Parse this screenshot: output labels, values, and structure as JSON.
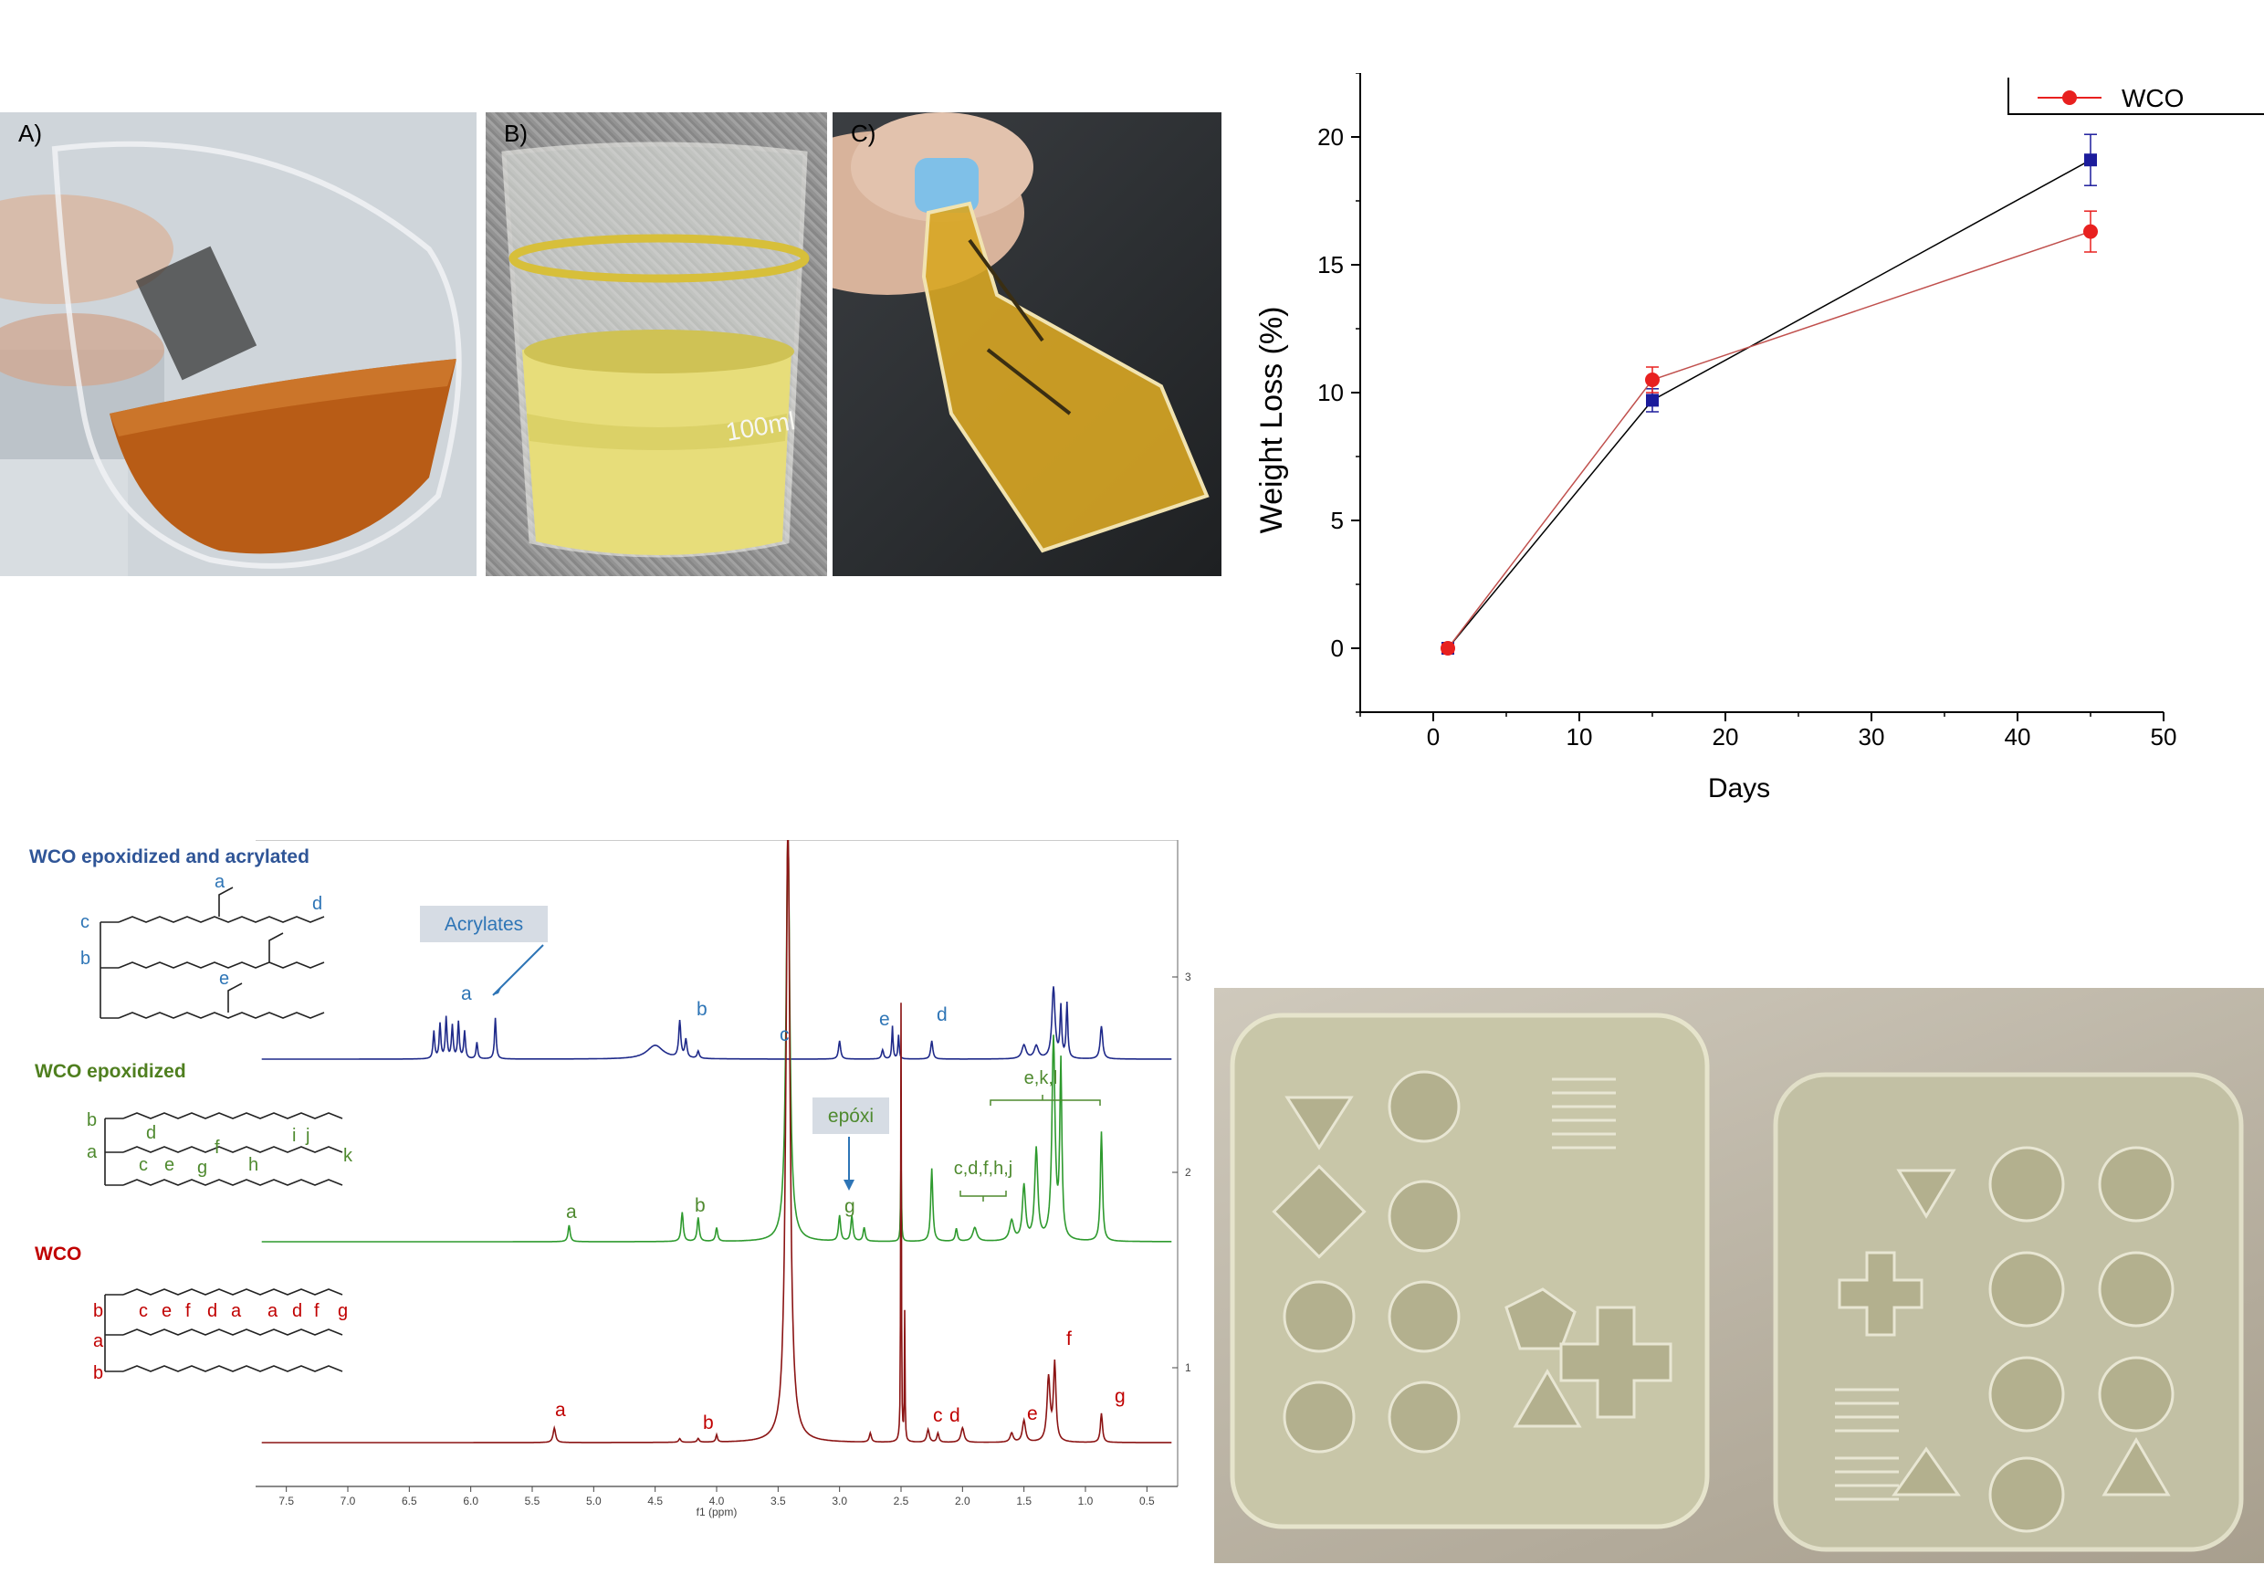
{
  "photos": {
    "a": {
      "label": "A)"
    },
    "b": {
      "label": "B)",
      "beaker_marking": "100ml"
    },
    "c": {
      "label": "C)"
    }
  },
  "chart_data": {
    "type": "line",
    "xlabel": "Days",
    "ylabel": "Weight   Loss (%)",
    "xlim": [
      -5,
      50
    ],
    "ylim": [
      -2.5,
      22.5
    ],
    "xticks": [
      0,
      10,
      20,
      30,
      40,
      50
    ],
    "yticks": [
      0,
      5,
      10,
      15,
      20
    ],
    "grid": false,
    "legend_position": "top-right",
    "series": [
      {
        "name": "WCO",
        "color": "#e8201f",
        "marker": "circle",
        "x": [
          1,
          15,
          45
        ],
        "y": [
          0,
          10.5,
          16.3
        ],
        "err": [
          0.15,
          0.5,
          0.8
        ]
      },
      {
        "name": "",
        "color": "#1c1c9c",
        "marker": "square",
        "x": [
          1,
          15,
          45
        ],
        "y": [
          0,
          9.7,
          19.1
        ],
        "err": [
          0.15,
          0.45,
          1.0
        ]
      }
    ]
  },
  "nmr": {
    "titles": {
      "acrylated": "WCO epoxidized and acrylated",
      "epoxidized": "WCO epoxidized",
      "wco": "WCO"
    },
    "annotations": {
      "acrylates": "Acrylates",
      "epoxi": "epóxi",
      "cdfhj": "c,d,f,h,j",
      "ekl": "e,k,l"
    },
    "xaxis": {
      "label": "f1 (ppm)",
      "ticks": [
        "7.5",
        "7.0",
        "6.5",
        "6.0",
        "5.5",
        "5.0",
        "4.5",
        "4.0",
        "3.5",
        "3.0",
        "2.5",
        "2.0",
        "1.5",
        "1.0",
        "0.5"
      ]
    },
    "yaxis_ticks": [
      "3",
      "2",
      "1"
    ],
    "colors": {
      "acrylated": "#1f2a8a",
      "epoxidized": "#2e9a2e",
      "wco": "#8b1414"
    },
    "peak_labels": {
      "acrylated": [
        "a",
        "b",
        "c",
        "e",
        "d"
      ],
      "epoxidized": [
        "a",
        "b",
        "g"
      ],
      "wco": [
        "a",
        "b",
        "c",
        "d",
        "e",
        "f",
        "g"
      ]
    },
    "structure_labels": {
      "acrylated": [
        "a",
        "c",
        "d",
        "b",
        "e"
      ],
      "epoxidized": [
        "b",
        "a",
        "d",
        "c",
        "e",
        "f",
        "g",
        "h",
        "i",
        "j",
        "k"
      ],
      "wco": [
        "b",
        "c",
        "e",
        "f",
        "d",
        "a",
        "a",
        "d",
        "f",
        "g",
        "a",
        "b"
      ]
    }
  }
}
